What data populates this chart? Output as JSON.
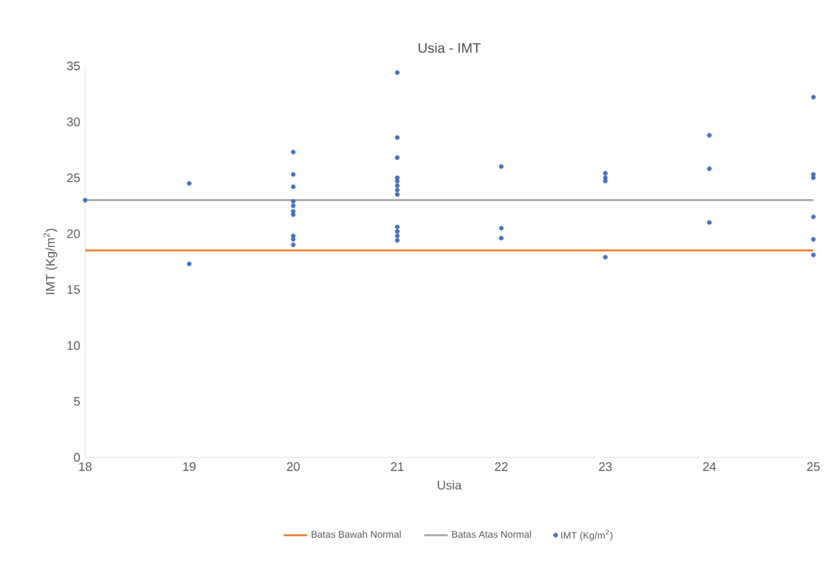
{
  "chart_data": {
    "type": "scatter",
    "title": "Usia - IMT",
    "xlabel": "Usia",
    "ylabel": "IMT (Kg/m$^{2}$)",
    "xlim": [
      18,
      25
    ],
    "xticks": [
      18,
      19,
      20,
      21,
      22,
      23,
      24,
      25
    ],
    "ylim": [
      0,
      35
    ],
    "yticks": [
      0,
      5,
      10,
      15,
      20,
      25,
      30,
      35
    ],
    "grid": false,
    "legend": "bottom",
    "series": [
      {
        "name": "Batas Bawah Normal",
        "type": "line",
        "color": "#ed7d31",
        "x": [
          18,
          25
        ],
        "values": [
          18.5,
          18.5
        ]
      },
      {
        "name": "Batas Atas Normal",
        "type": "line",
        "color": "#a5a5a5",
        "x": [
          18,
          25
        ],
        "values": [
          23,
          23
        ]
      },
      {
        "name": "IMT (Kg/m$^{2}$)",
        "marker": "circle",
        "color": "#4472c4",
        "x": [
          18,
          19,
          19,
          20,
          20,
          20,
          20,
          20,
          20,
          20,
          20,
          20,
          20,
          21,
          21,
          21,
          21,
          21,
          21,
          21,
          21,
          21,
          21,
          21,
          21,
          22,
          22,
          22,
          23,
          23,
          23,
          23,
          24,
          24,
          24,
          25,
          25,
          25,
          25,
          25,
          25
        ],
        "values": [
          23.0,
          24.5,
          17.3,
          27.3,
          25.3,
          24.2,
          22.9,
          22.5,
          22.0,
          21.7,
          19.8,
          19.5,
          19.0,
          34.4,
          28.6,
          26.8,
          25.0,
          24.7,
          24.3,
          23.9,
          23.5,
          20.6,
          20.2,
          19.8,
          19.4,
          26.0,
          20.5,
          19.6,
          25.4,
          25.0,
          24.7,
          17.9,
          28.8,
          25.8,
          21.0,
          32.2,
          25.3,
          25.0,
          21.5,
          19.5,
          18.1
        ]
      }
    ]
  }
}
